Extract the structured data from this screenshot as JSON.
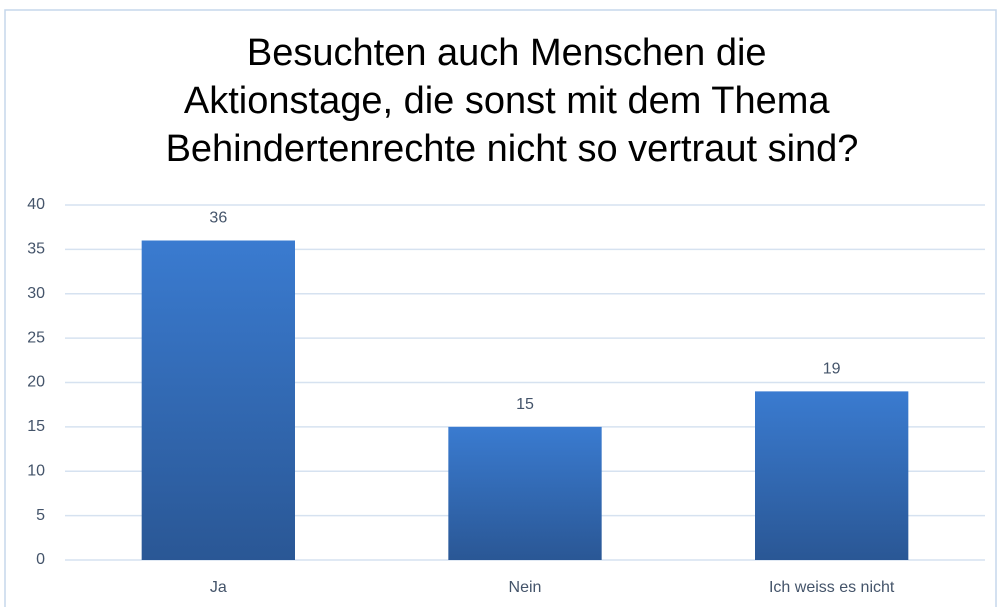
{
  "chart_data": {
    "type": "bar",
    "title": [
      "Besuchten auch Menschen die",
      "Aktionstage, die sonst mit dem Thema",
      "Behindertenrechte nicht so vertraut sind?"
    ],
    "categories": [
      "Ja",
      "Nein",
      "Ich weiss es nicht"
    ],
    "values": [
      36,
      15,
      19
    ],
    "color": "#3a7bd0",
    "ylim": [
      0,
      40
    ],
    "yticks": [
      0,
      5,
      10,
      15,
      20,
      25,
      30,
      35,
      40
    ],
    "grid": true
  }
}
